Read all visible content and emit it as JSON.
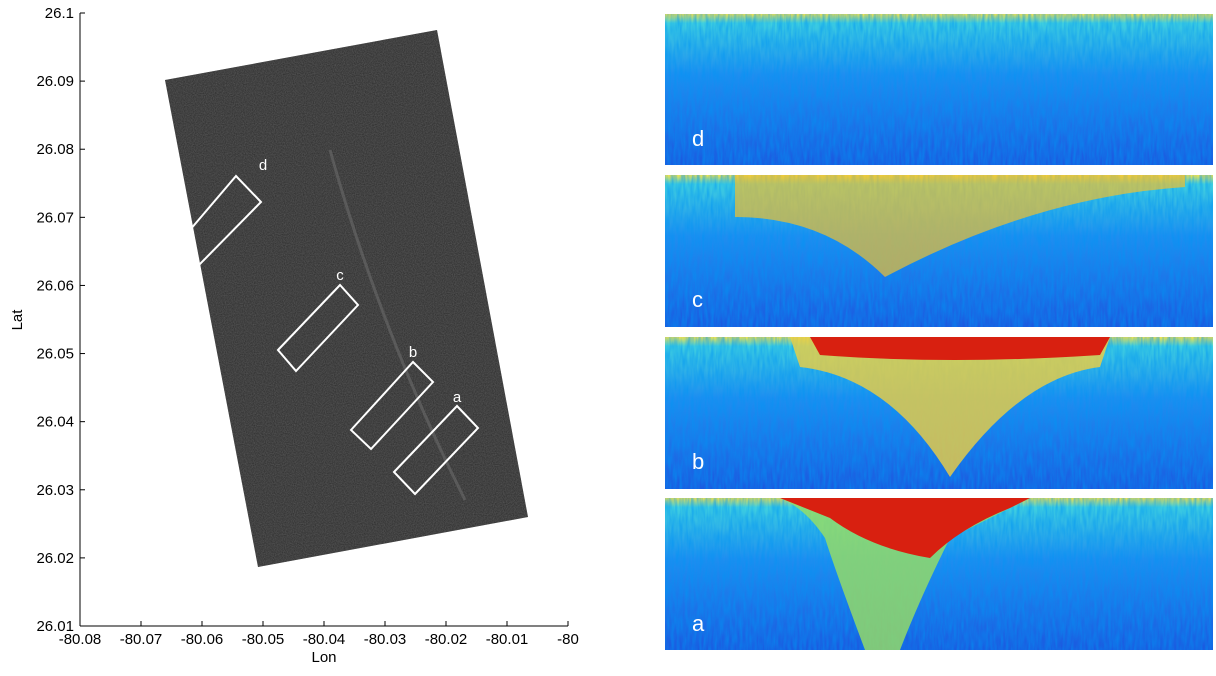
{
  "chart_data": {
    "type": "image",
    "xlabel": "Lon",
    "ylabel": "Lat",
    "xlim": [
      -80.08,
      -80
    ],
    "ylim": [
      26.01,
      26.1
    ],
    "xticks": [
      -80.08,
      -80.07,
      -80.06,
      -80.05,
      -80.04,
      -80.03,
      -80.02,
      -80.01,
      -80
    ],
    "yticks": [
      26.01,
      26.02,
      26.03,
      26.04,
      26.05,
      26.06,
      26.07,
      26.08,
      26.09,
      26.1
    ],
    "grid": false,
    "boxes": [
      "d",
      "c",
      "b",
      "a"
    ],
    "panels": [
      "d",
      "c",
      "b",
      "a"
    ]
  }
}
